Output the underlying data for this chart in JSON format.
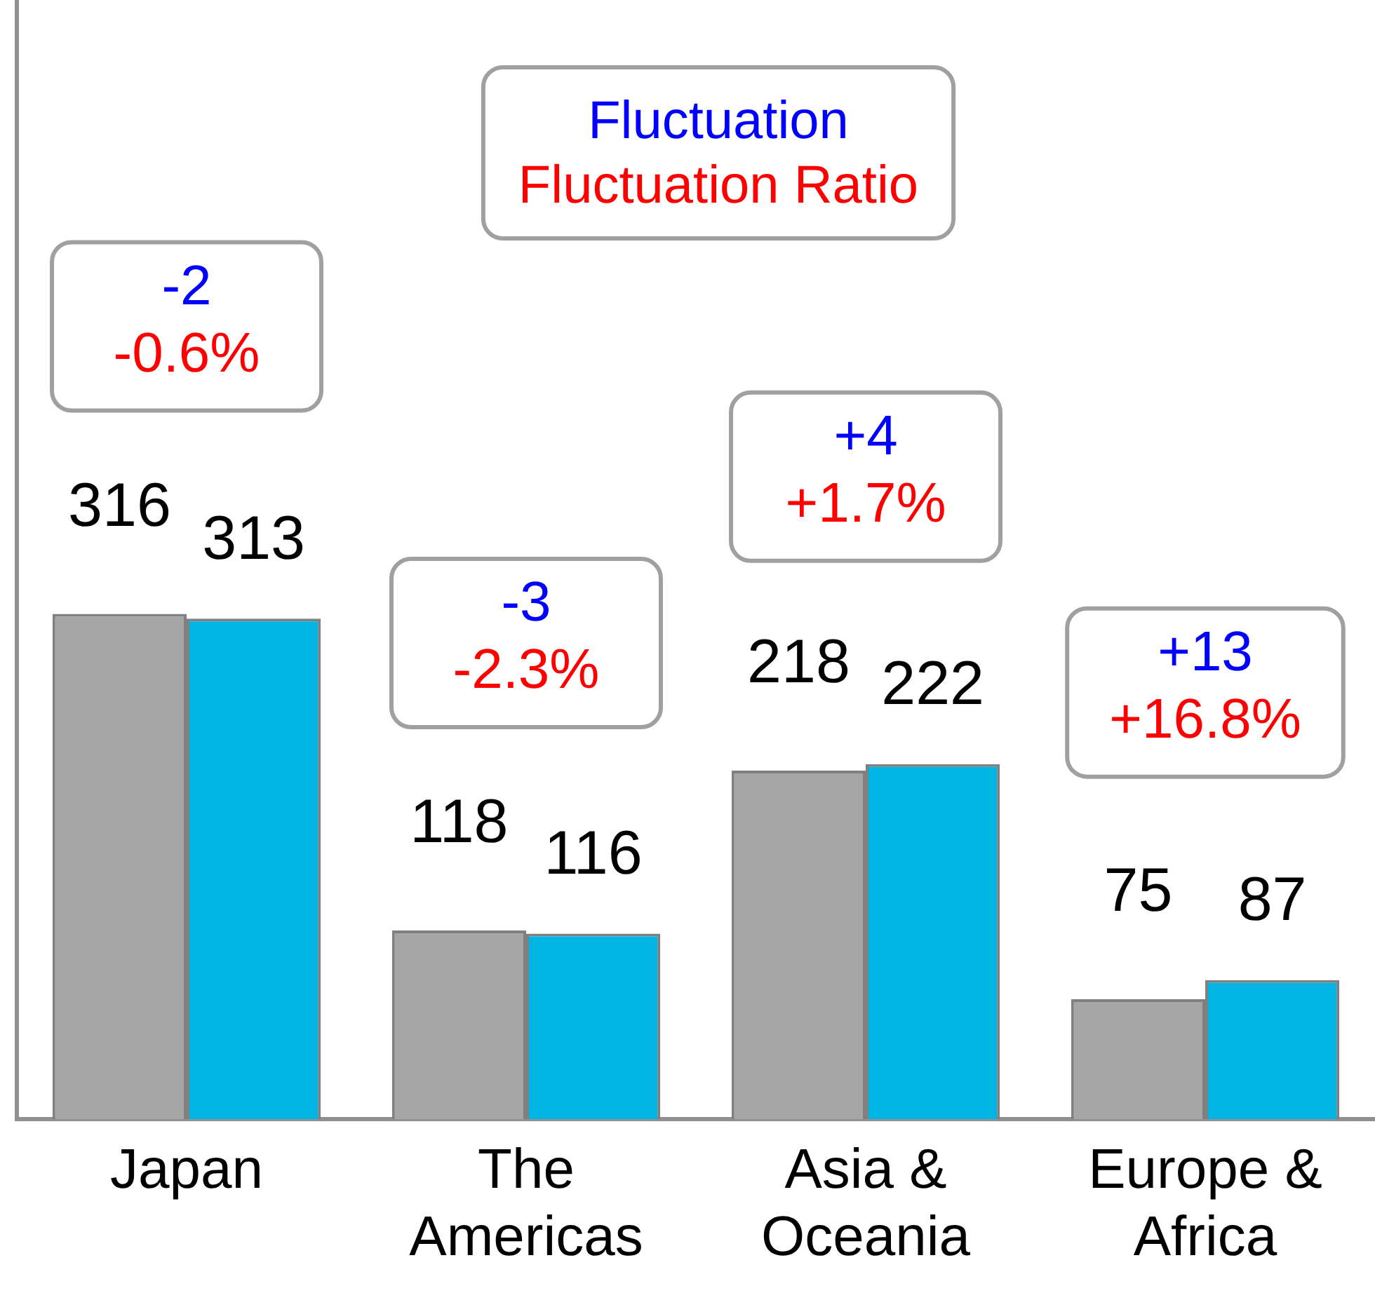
{
  "chart_data": {
    "type": "bar",
    "categories": [
      "Japan",
      "The Americas",
      "Asia & Oceania",
      "Europe & Africa"
    ],
    "series": [
      {
        "color": "#a6a6a6",
        "values": [
          316,
          118,
          218,
          75
        ]
      },
      {
        "color": "#00b4e4",
        "values": [
          313,
          116,
          222,
          87
        ]
      }
    ],
    "tick_labels": "x",
    "data_labels": true,
    "legend": false,
    "grid": false,
    "annotations": [
      "Fluctuation",
      "Fluctuation Ratio",
      "-2",
      "-0.6%",
      "-3",
      "-2.3%",
      "+4",
      "+1.7%",
      "+13",
      "+16.8%"
    ]
  }
}
